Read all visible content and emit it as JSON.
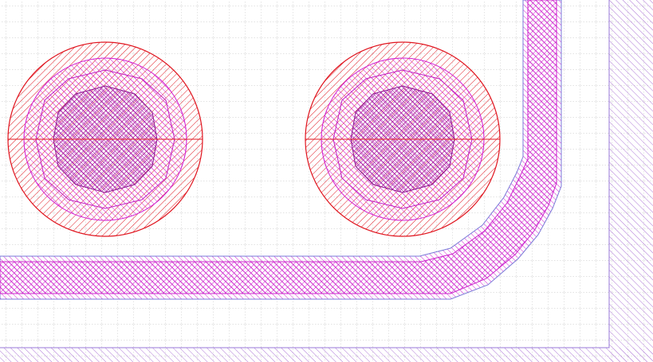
{
  "colors": {
    "background": "#ffffff",
    "grid": "#b4b4b4",
    "pad_outline": "#e0141e",
    "pad_hatch": "#e0141e",
    "inner_ring": "#d21ed2",
    "core": "#a01ea0",
    "core_outline": "#8c1890",
    "trace": "#cc22cc",
    "trace_outline": "#7a7ad8",
    "board_edge": "#9a7ad8"
  },
  "icons": {
    "pad": "via-pad-icon",
    "trace": "copper-trace-icon",
    "edge": "board-edge-icon"
  }
}
